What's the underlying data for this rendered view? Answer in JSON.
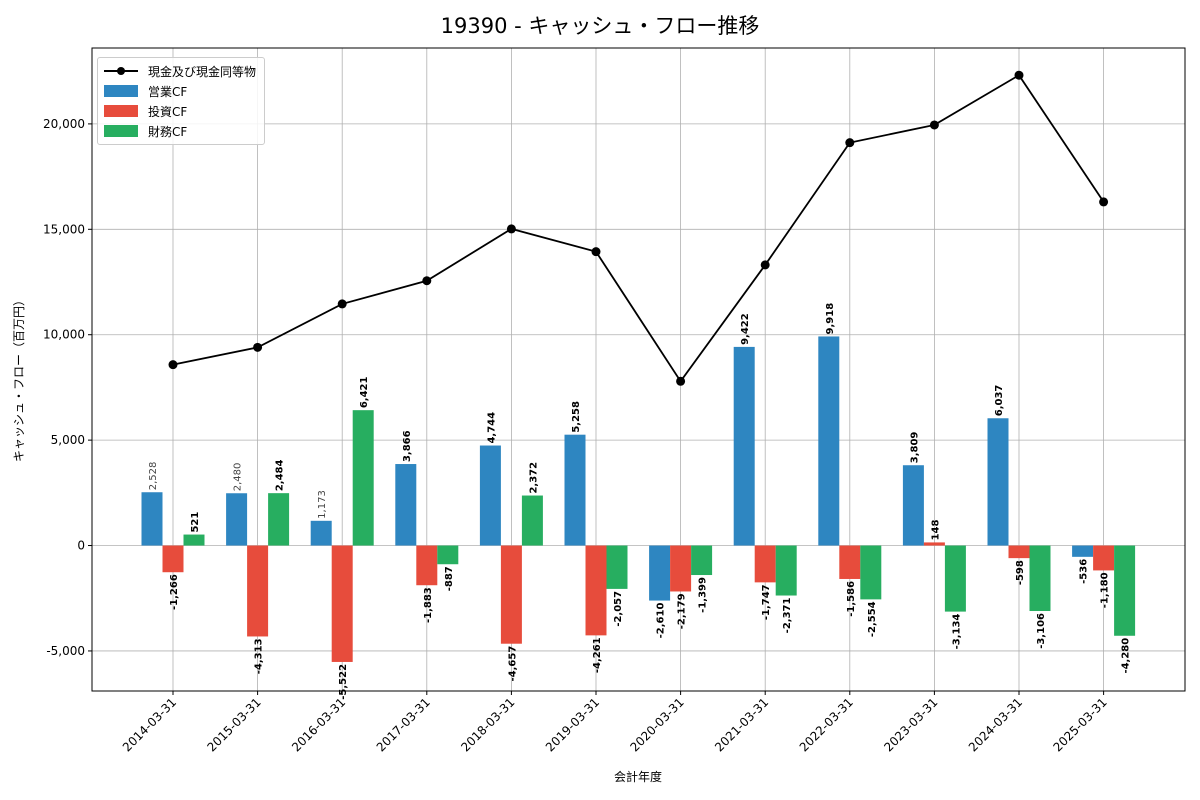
{
  "chart_data": {
    "type": "bar",
    "title": "19390 - キャッシュ・フロー推移",
    "xlabel": "会計年度",
    "ylabel": "キャッシュ・フロー（百万円）",
    "categories": [
      "2014-03-31",
      "2015-03-31",
      "2016-03-31",
      "2017-03-31",
      "2018-03-31",
      "2019-03-31",
      "2020-03-31",
      "2021-03-31",
      "2022-03-31",
      "2023-03-31",
      "2024-03-31",
      "2025-03-31"
    ],
    "series": [
      {
        "name": "営業CF",
        "type": "bar",
        "color": "#2e86c1",
        "values": [
          2528,
          2480,
          1173,
          3866,
          4744,
          5258,
          -2610,
          9422,
          9918,
          3809,
          6037,
          -536
        ]
      },
      {
        "name": "投資CF",
        "type": "bar",
        "color": "#e74c3c",
        "values": [
          -1266,
          -4313,
          -5522,
          -1883,
          -4657,
          -4261,
          -2179,
          -1747,
          -1586,
          148,
          -598,
          -1180
        ]
      },
      {
        "name": "財務CF",
        "type": "bar",
        "color": "#27ae60",
        "values": [
          521,
          2484,
          6421,
          -887,
          2372,
          -2057,
          -1399,
          -2371,
          -2554,
          -3134,
          -3106,
          -4280
        ]
      },
      {
        "name": "現金及び現金同等物",
        "type": "line",
        "color": "#000000",
        "values": [
          8580,
          9400,
          11460,
          12560,
          15020,
          13940,
          7790,
          13310,
          19110,
          19950,
          22310,
          16300
        ]
      }
    ],
    "data_labels": {
      "営業CF": [
        "2,528",
        "2,480",
        "1,173",
        "3,866",
        "4,744",
        "5,258",
        "-2,610",
        "9,422",
        "9,918",
        "3,809",
        "6,037",
        "-536"
      ],
      "投資CF": [
        "-1,266",
        "-4,313",
        "-5,522",
        "-1,883",
        "-4,657",
        "-4,261",
        "-2,179",
        "-1,747",
        "-1,586",
        "148",
        "-598",
        "-1,180"
      ],
      "財務CF": [
        "521",
        "2,484",
        "6,421",
        "-887",
        "2,372",
        "-2,057",
        "-1,399",
        "-2,371",
        "-2,554",
        "-3,134",
        "-3,106",
        "-4,280"
      ]
    },
    "yticks": [
      -5000,
      0,
      5000,
      10000,
      15000,
      20000
    ],
    "ytick_labels": [
      "-5,000",
      "0",
      "5,000",
      "10,000",
      "15,000",
      "20,000"
    ],
    "ylim": [
      -6900,
      23600
    ],
    "grid": true,
    "legend_position": "top-left"
  }
}
